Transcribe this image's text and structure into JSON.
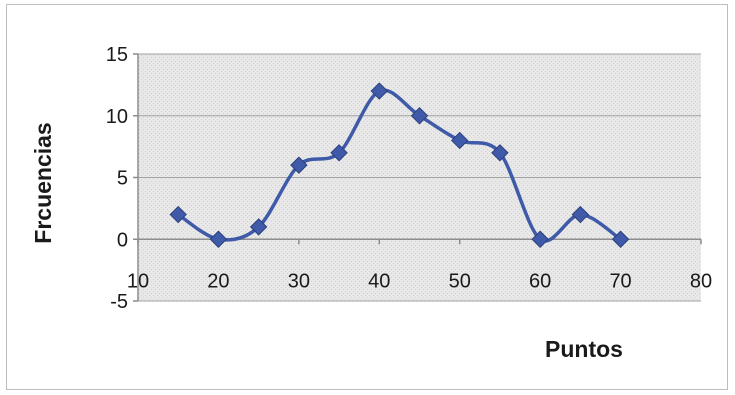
{
  "chart_data": {
    "type": "line",
    "title": "",
    "xlabel": "Puntos",
    "ylabel": "Frcuencias",
    "xlim": [
      10,
      80
    ],
    "ylim": [
      -5,
      15
    ],
    "x_ticks": [
      "10",
      "20",
      "30",
      "40",
      "50",
      "60",
      "70",
      "80"
    ],
    "y_ticks": [
      "15",
      "10",
      "5",
      "0",
      "-5"
    ],
    "grid": true,
    "legend": "none",
    "series": [
      {
        "x": [
          15,
          20,
          25,
          30,
          35,
          40,
          45,
          50,
          55,
          60,
          65,
          70
        ],
        "values": [
          2,
          0,
          1,
          6,
          7,
          12,
          10,
          8,
          7,
          0,
          2,
          0
        ]
      }
    ],
    "colors": {
      "line": "#3f5aa8",
      "marker": "#3f5aa8",
      "plot_background": "#e6e6e6",
      "gridline": "#a0a0a0",
      "axis": "#8c8c8c"
    }
  }
}
